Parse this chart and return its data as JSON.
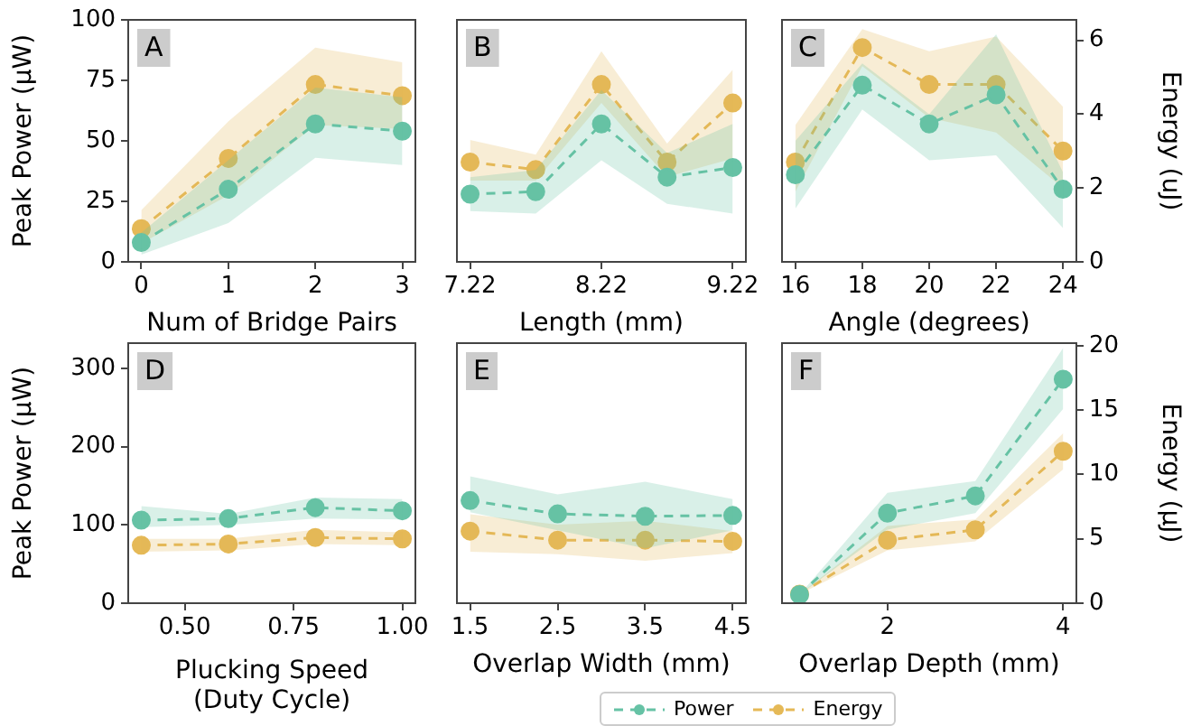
{
  "chart_data": [
    {
      "type": "line",
      "annotations": [
        "A"
      ],
      "xlabel": "Num of Bridge Pairs",
      "ylabel": "Peak Power (µW)",
      "x": [
        0,
        1,
        2,
        3
      ],
      "xlim": [
        -0.15,
        3.15
      ],
      "xticks": [
        0,
        1,
        2,
        3
      ],
      "ylim": [
        0,
        100
      ],
      "yticks": [
        0,
        25,
        50,
        75,
        100
      ],
      "y2lim": [
        0,
        6.55
      ],
      "marker": "circle",
      "line_style": "dashed",
      "grid": false,
      "series": [
        {
          "color": "#66c2a5",
          "values": [
            8,
            30,
            57,
            54
          ],
          "lower": [
            3,
            16,
            43,
            40
          ],
          "upper": [
            12,
            42,
            72,
            68
          ]
        },
        {
          "color": "#e5b957",
          "axis": "y2",
          "values": [
            0.9,
            2.8,
            4.8,
            4.5
          ],
          "lower": [
            0.5,
            1.8,
            3.7,
            3.6
          ],
          "upper": [
            1.4,
            3.8,
            5.8,
            5.4
          ]
        }
      ]
    },
    {
      "type": "line",
      "annotations": [
        "B"
      ],
      "xlabel": "Length (mm)",
      "x": [
        7.22,
        7.72,
        8.22,
        8.72,
        9.22
      ],
      "xlim": [
        7.12,
        9.32
      ],
      "xticks": [
        7.22,
        8.22,
        9.22
      ],
      "ylim": [
        0,
        100
      ],
      "y2lim": [
        0,
        6.55
      ],
      "marker": "circle",
      "line_style": "dashed",
      "grid": false,
      "series": [
        {
          "color": "#66c2a5",
          "values": [
            28,
            29,
            57,
            35,
            39
          ],
          "lower": [
            21,
            20,
            42,
            24,
            20
          ],
          "upper": [
            35,
            38,
            71,
            45,
            57
          ]
        },
        {
          "color": "#e5b957",
          "axis": "y2",
          "values": [
            2.7,
            2.5,
            4.8,
            2.7,
            4.3
          ],
          "lower": [
            2.2,
            2.2,
            4.3,
            2.3,
            2.8
          ],
          "upper": [
            3.3,
            2.9,
            5.7,
            3.2,
            5.2
          ]
        }
      ]
    },
    {
      "type": "line",
      "annotations": [
        "C"
      ],
      "xlabel": "Angle (degrees)",
      "y2label": "Energy (uJ)",
      "x": [
        16,
        18,
        20,
        22,
        24
      ],
      "xlim": [
        15.6,
        24.4
      ],
      "xticks": [
        16,
        18,
        20,
        22,
        24
      ],
      "ylim": [
        0,
        100
      ],
      "y2lim": [
        0,
        6.55
      ],
      "y2ticks": [
        0,
        2,
        4,
        6
      ],
      "marker": "circle",
      "line_style": "dashed",
      "grid": false,
      "series": [
        {
          "color": "#66c2a5",
          "values": [
            36,
            73,
            57,
            69,
            30
          ],
          "lower": [
            22,
            63,
            42,
            44,
            14
          ],
          "upper": [
            50,
            82,
            61,
            94,
            37
          ]
        },
        {
          "color": "#e5b957",
          "axis": "y2",
          "values": [
            2.7,
            5.8,
            4.8,
            4.8,
            3.0
          ],
          "lower": [
            1.9,
            5.3,
            3.9,
            3.5,
            2.0
          ],
          "upper": [
            3.7,
            6.3,
            5.7,
            6.1,
            4.2
          ]
        }
      ]
    },
    {
      "type": "line",
      "annotations": [
        "D"
      ],
      "xlabel": "Plucking Speed\n(Duty Cycle)",
      "ylabel": "Peak Power (µW)",
      "x": [
        0.4,
        0.6,
        0.8,
        1.0
      ],
      "xlim": [
        0.37,
        1.03
      ],
      "xticks": [
        {
          "value": 0.5,
          "label": "0.50"
        },
        0.75,
        {
          "value": 1,
          "label": "1.00"
        }
      ],
      "ylim": [
        0,
        332
      ],
      "yticks": [
        0,
        100,
        200,
        300
      ],
      "y2lim": [
        0,
        20.2
      ],
      "marker": "circle",
      "line_style": "dashed",
      "grid": false,
      "series": [
        {
          "color": "#66c2a5",
          "values": [
            106,
            108,
            122,
            118
          ],
          "lower": [
            97,
            100,
            108,
            107
          ],
          "upper": [
            124,
            114,
            135,
            133
          ]
        },
        {
          "color": "#e5b957",
          "axis": "y2",
          "values": [
            4.5,
            4.6,
            5.1,
            5.0
          ],
          "lower": [
            4.0,
            4.1,
            4.6,
            4.5
          ],
          "upper": [
            5.0,
            5.0,
            5.7,
            5.5
          ]
        }
      ]
    },
    {
      "type": "line",
      "annotations": [
        "E"
      ],
      "xlabel": "Overlap Width (mm)",
      "x": [
        1.5,
        2.5,
        3.5,
        4.5
      ],
      "xlim": [
        1.35,
        4.65
      ],
      "xticks": [
        1.5,
        2.5,
        3.5,
        4.5
      ],
      "ylim": [
        0,
        332
      ],
      "y2lim": [
        0,
        20.2
      ],
      "marker": "circle",
      "line_style": "dashed",
      "grid": false,
      "legend": "bottom",
      "series": [
        {
          "name": "Power",
          "color": "#66c2a5",
          "values": [
            131,
            114,
            111,
            112
          ],
          "lower": [
            116,
            93,
            70,
            93
          ],
          "upper": [
            162,
            139,
            155,
            133
          ]
        },
        {
          "name": "Energy",
          "color": "#e5b957",
          "axis": "y2",
          "values": [
            5.6,
            4.9,
            4.9,
            4.8
          ],
          "lower": [
            4.0,
            3.8,
            3.3,
            3.9
          ],
          "upper": [
            6.9,
            6.1,
            6.4,
            5.6
          ]
        }
      ]
    },
    {
      "type": "line",
      "annotations": [
        "F"
      ],
      "xlabel": "Overlap Depth (mm)",
      "y2label": "Energy (µJ)",
      "x": [
        1,
        2,
        3,
        4
      ],
      "xlim": [
        0.8,
        4.15
      ],
      "xticks": [
        2,
        4
      ],
      "ylim": [
        0,
        332
      ],
      "y2lim": [
        0,
        20.2
      ],
      "y2ticks": [
        0,
        5,
        10,
        15,
        20
      ],
      "marker": "circle",
      "line_style": "dashed",
      "grid": false,
      "series": [
        {
          "color": "#66c2a5",
          "values": [
            11,
            115,
            137,
            286
          ],
          "lower": [
            11,
            94,
            115,
            248
          ],
          "upper": [
            11,
            141,
            156,
            326
          ]
        },
        {
          "color": "#e5b957",
          "axis": "y2",
          "values": [
            0.7,
            4.9,
            5.7,
            11.8
          ],
          "lower": [
            0.7,
            4.1,
            4.8,
            10.4
          ],
          "upper": [
            0.7,
            6.0,
            6.5,
            13.2
          ]
        }
      ]
    }
  ]
}
